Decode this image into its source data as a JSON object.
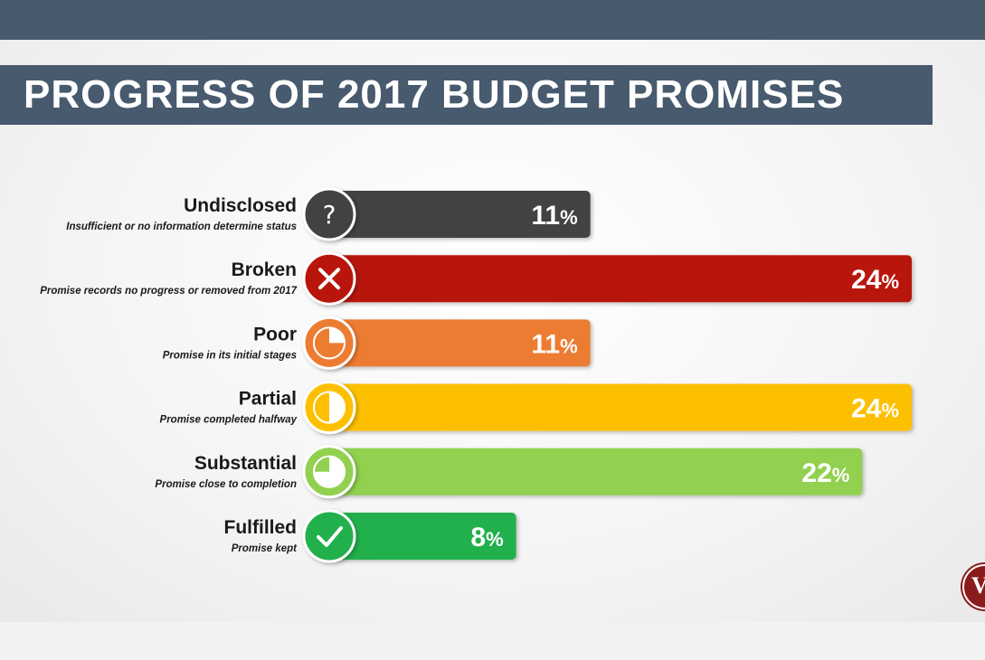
{
  "title": "PROGRESS OF 2017 BUDGET PROMISES",
  "logo_mark": "V",
  "chart_data": {
    "type": "bar",
    "orientation": "horizontal",
    "title": "PROGRESS OF 2017 BUDGET PROMISES",
    "xlim": [
      0,
      24
    ],
    "grid": false,
    "legend": "none",
    "categories": [
      "Undisclosed",
      "Broken",
      "Poor",
      "Partial",
      "Substantial",
      "Fulfilled"
    ],
    "descriptions": [
      "Insufficient or no information determine status",
      "Promise records no progress or removed from 2017",
      "Promise in its initial stages",
      "Promise completed halfway",
      "Promise close to completion",
      "Promise kept"
    ],
    "values": [
      11,
      24,
      11,
      24,
      22,
      8
    ],
    "value_labels": [
      "11",
      "24",
      "11",
      "24",
      "22",
      "8"
    ],
    "unit": "%",
    "colors": [
      "#434343",
      "#b8170a",
      "#ec7c30",
      "#fdc002",
      "#92d050",
      "#20b04e"
    ],
    "icons": [
      "question-icon",
      "cross-icon",
      "quarter-pie-icon",
      "half-pie-icon",
      "three-quarter-pie-icon",
      "check-icon"
    ]
  }
}
